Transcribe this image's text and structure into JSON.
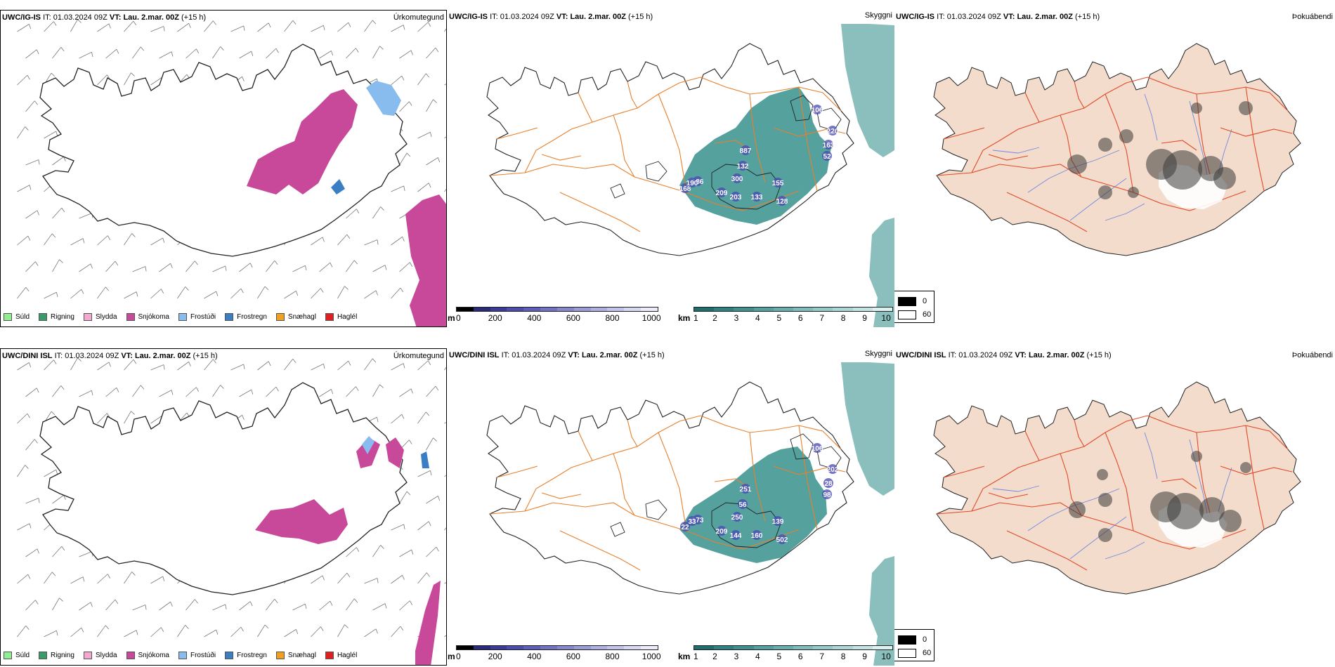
{
  "rows": [
    {
      "model": "UWC/IG-IS",
      "it_label": "IT:",
      "it_value": "01.03.2024 09Z",
      "vt_label": "VT:",
      "vt_value": "Lau. 2.mar. 00Z",
      "lead": "(+15 h)",
      "snow_labels": [
        "887",
        "132",
        "300",
        "209",
        "203",
        "133",
        "155",
        "128",
        "186",
        "168",
        "190",
        "106",
        "220",
        "163",
        "52"
      ]
    },
    {
      "model": "UWC/DINI ISL",
      "it_label": "IT:",
      "it_value": "01.03.2024 09Z",
      "vt_label": "VT:",
      "vt_value": "Lau. 2.mar. 00Z",
      "lead": "(+15 h)",
      "snow_labels": [
        "251",
        "56",
        "250",
        "209",
        "144",
        "160",
        "139",
        "502",
        "173",
        "22",
        "33",
        "106",
        "202",
        "28",
        "98"
      ]
    }
  ],
  "panel_titles": {
    "precip_type": "Úrkomutegund",
    "visibility": "Skyggni",
    "fog": "Þokuábendi"
  },
  "precip_legend": [
    {
      "label": "Súld",
      "color": "#90ee90"
    },
    {
      "label": "Rigning",
      "color": "#3a9a6a"
    },
    {
      "label": "Slydda",
      "color": "#f4a8d0"
    },
    {
      "label": "Snjókoma",
      "color": "#c8489a"
    },
    {
      "label": "Frostúði",
      "color": "#88bbee"
    },
    {
      "label": "Frostregn",
      "color": "#3a7fc4"
    },
    {
      "label": "Snæhagl",
      "color": "#f0a020"
    },
    {
      "label": "Haglél",
      "color": "#e02020"
    }
  ],
  "elevation_bar": {
    "unit": "m",
    "ticks": [
      "0",
      "200",
      "400",
      "600",
      "800",
      "1000"
    ],
    "colors": [
      "#000000",
      "#2a2a7a",
      "#3c3c98",
      "#4c4caa",
      "#5f5fb8",
      "#7373c4",
      "#8787cc",
      "#9c9cd6",
      "#b0b0e0",
      "#c4c4ea",
      "#d8d8f2",
      "#ececfa"
    ]
  },
  "visibility_bar": {
    "unit": "km",
    "ticks": [
      "1",
      "2",
      "3",
      "4",
      "5",
      "6",
      "7",
      "8",
      "9",
      "10"
    ],
    "colors": [
      "#1e6e6e",
      "#2f8080",
      "#419090",
      "#55a0a0",
      "#6aaeae",
      "#80bcbc",
      "#96caca",
      "#add7d7",
      "#c4e4e4",
      "#dcf0f0"
    ]
  },
  "fog_legend": {
    "top_label": "0",
    "bottom_label": "60"
  },
  "colors": {
    "snow": "#c8489a",
    "freezing": "#88bbee",
    "freezing_dark": "#3a7fc4",
    "vis_teal": "#2a8a86",
    "roads": "#e8802c",
    "land_fog": "#f3dccb",
    "fog_roads": "#e24a2a",
    "rivers": "#7088e0"
  }
}
